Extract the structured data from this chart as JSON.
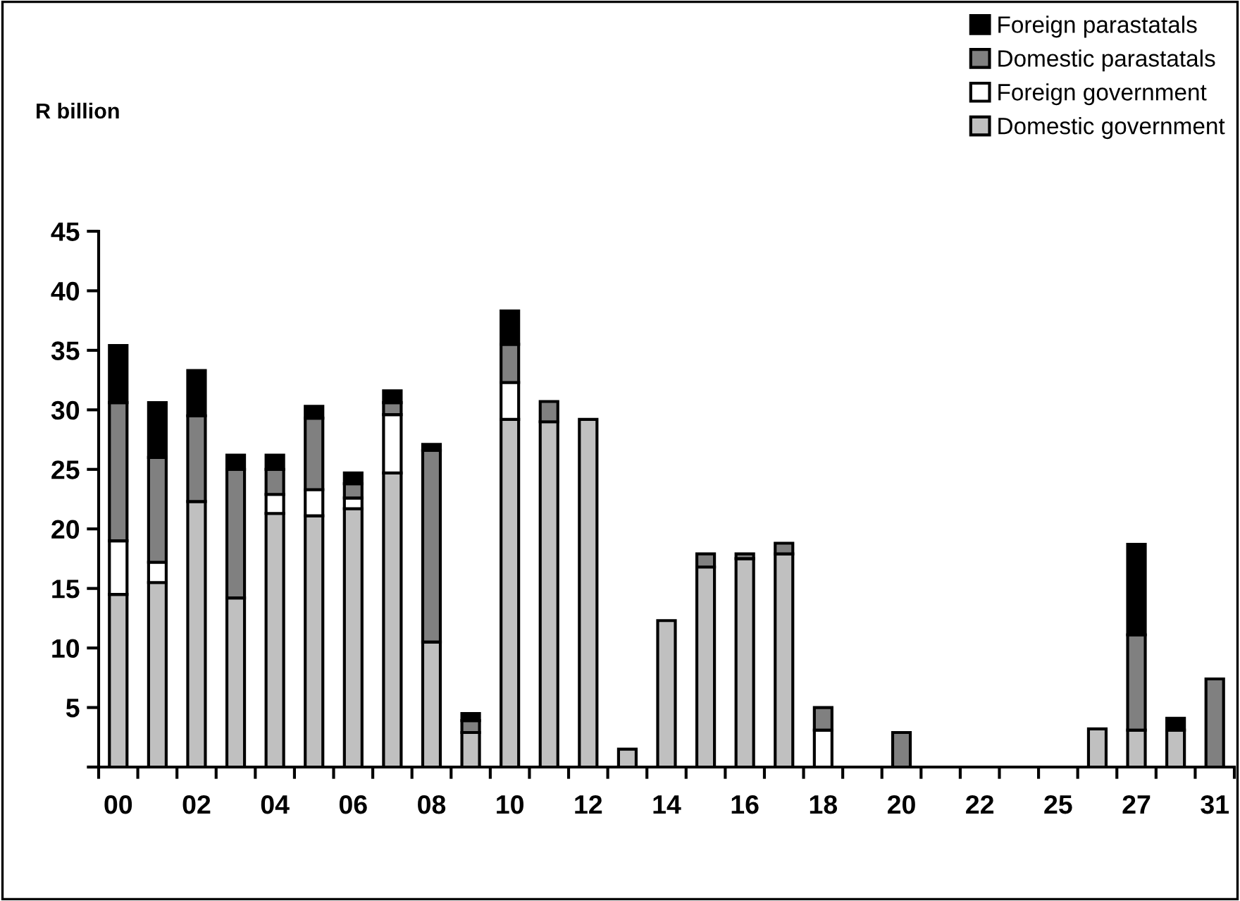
{
  "chart_data": {
    "type": "bar",
    "stacked": true,
    "ylabel": "R billion",
    "categories": [
      "00",
      null,
      "02",
      null,
      "04",
      null,
      "06",
      null,
      "08",
      null,
      "10",
      null,
      "12",
      null,
      "14",
      null,
      "16",
      null,
      "18",
      null,
      "20",
      null,
      "22",
      null,
      "25",
      null,
      "27",
      null,
      "31"
    ],
    "series": [
      {
        "name": "Domestic government",
        "color": "#c0c0c0",
        "values": [
          14.5,
          15.5,
          22.3,
          14.2,
          21.3,
          21.1,
          21.7,
          24.7,
          10.5,
          2.9,
          29.2,
          29.0,
          29.2,
          1.5,
          12.3,
          16.8,
          17.5,
          17.9,
          null,
          null,
          null,
          null,
          null,
          null,
          null,
          3.2,
          3.1,
          3.1,
          null
        ]
      },
      {
        "name": "Foreign government",
        "color": "#ffffff",
        "values": [
          4.5,
          1.7,
          null,
          null,
          1.6,
          2.2,
          0.9,
          4.9,
          null,
          null,
          3.1,
          null,
          null,
          null,
          null,
          null,
          null,
          null,
          3.1,
          null,
          null,
          null,
          null,
          null,
          null,
          null,
          null,
          null,
          null
        ]
      },
      {
        "name": "Domestic parastatals",
        "color": "#808080",
        "values": [
          11.6,
          8.8,
          7.2,
          10.8,
          2.1,
          6.0,
          1.2,
          1.0,
          16.1,
          1.0,
          3.2,
          1.7,
          null,
          null,
          null,
          1.1,
          0.4,
          0.9,
          1.9,
          null,
          2.9,
          null,
          null,
          null,
          null,
          null,
          8.0,
          null,
          7.4
        ]
      },
      {
        "name": "Foreign parastatals",
        "color": "#000000",
        "values": [
          4.8,
          4.6,
          3.8,
          1.2,
          1.2,
          1.0,
          0.9,
          1.0,
          0.5,
          0.6,
          2.8,
          null,
          null,
          null,
          null,
          null,
          null,
          null,
          null,
          null,
          null,
          null,
          null,
          null,
          null,
          null,
          7.6,
          1.0,
          null
        ]
      }
    ],
    "ylim": [
      0,
      45
    ],
    "yticks": [
      {
        "value": 0,
        "label": null
      },
      5,
      10,
      15,
      20,
      25,
      30,
      35,
      40,
      45
    ],
    "grid": false,
    "legend": "top right"
  }
}
